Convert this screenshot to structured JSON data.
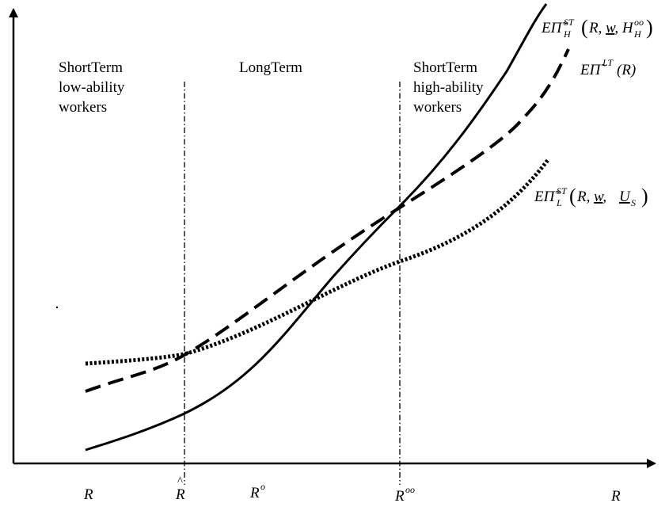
{
  "regions": {
    "left": [
      "ShortTerm",
      "low-ability",
      "workers"
    ],
    "middle": [
      "LongTerm"
    ],
    "right": [
      "ShortTerm",
      "high-ability",
      "workers"
    ]
  },
  "x_axis": {
    "ticks": [
      "R",
      "R̂",
      "R^o",
      "R^oo"
    ],
    "label": "R"
  },
  "curve_labels": {
    "high_st": "EΠ̃_H^ST(R, w, H_H^oo)",
    "long_term": "EΠ̃^LT(R)",
    "low_st": "EΠ̃_L^ST(R, w, U_S)"
  }
}
